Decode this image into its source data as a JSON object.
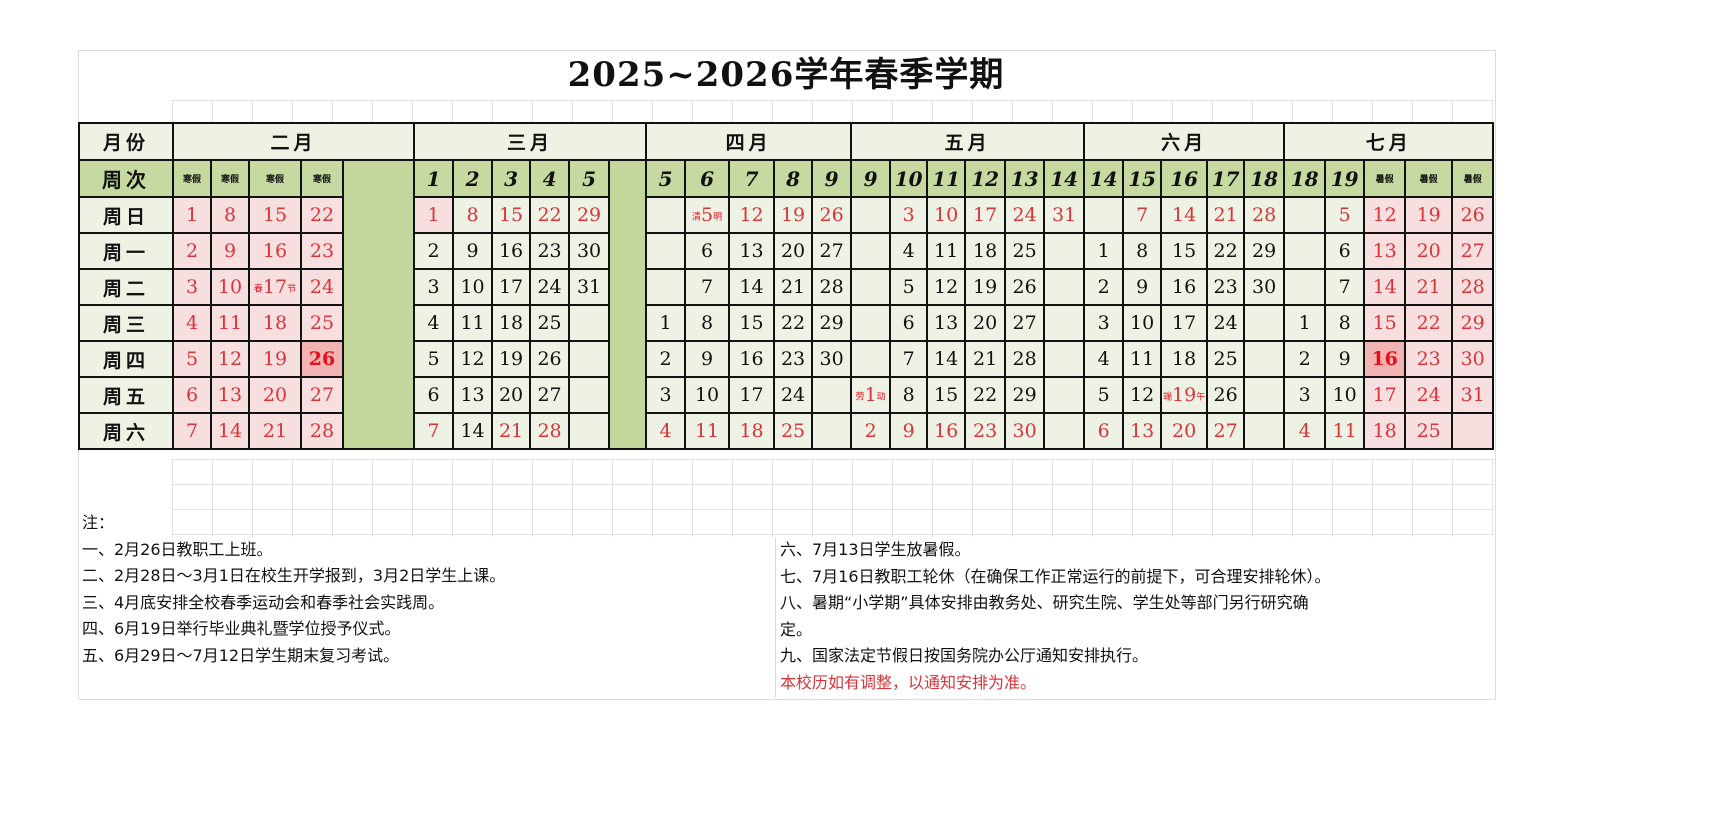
{
  "title": "2025~2026学年春季学期",
  "header": {
    "month_label": "月份",
    "week_label": "周次",
    "weekdays": [
      "周日",
      "周一",
      "周二",
      "周三",
      "周四",
      "周五",
      "周六"
    ]
  },
  "months": [
    {
      "name": "二月",
      "weeks": [
        {
          "label": "寒假",
          "small": true,
          "days": [
            [
              "1",
              "rp"
            ],
            [
              "2",
              "rp"
            ],
            [
              "3",
              "rp"
            ],
            [
              "4",
              "rp"
            ],
            [
              "5",
              "rp"
            ],
            [
              "6",
              "rp"
            ],
            [
              "7",
              "rp"
            ]
          ]
        },
        {
          "label": "寒假",
          "small": true,
          "days": [
            [
              "8",
              "rp"
            ],
            [
              "9",
              "rp"
            ],
            [
              "10",
              "rp"
            ],
            [
              "11",
              "rp"
            ],
            [
              "12",
              "rp"
            ],
            [
              "13",
              "rp"
            ],
            [
              "14",
              "rp"
            ]
          ]
        },
        {
          "label": "寒假",
          "small": true,
          "days": [
            [
              "15",
              "rp"
            ],
            [
              "16",
              "rp"
            ],
            [
              "17",
              "rp",
              "春",
              "节"
            ],
            [
              "18",
              "rp"
            ],
            [
              "19",
              "rp"
            ],
            [
              "20",
              "rp"
            ],
            [
              "21",
              "rp"
            ]
          ]
        },
        {
          "label": "寒假",
          "small": true,
          "days": [
            [
              "22",
              "rp"
            ],
            [
              "23",
              "rp"
            ],
            [
              "24",
              "rp"
            ],
            [
              "25",
              "rp"
            ],
            [
              "26",
              "rP"
            ],
            [
              "27",
              "rp"
            ],
            [
              "28",
              "rp"
            ]
          ]
        }
      ]
    },
    {
      "name": "三月",
      "weeks": [
        {
          "label": "1",
          "days": [
            [
              "1",
              "rp"
            ],
            [
              "2",
              ""
            ],
            [
              "3",
              ""
            ],
            [
              "4",
              ""
            ],
            [
              "5",
              ""
            ],
            [
              "6",
              ""
            ],
            [
              "7",
              "r"
            ]
          ]
        },
        {
          "label": "2",
          "days": [
            [
              "8",
              "r"
            ],
            [
              "9",
              ""
            ],
            [
              "10",
              ""
            ],
            [
              "11",
              ""
            ],
            [
              "12",
              ""
            ],
            [
              "13",
              ""
            ],
            [
              "14",
              ""
            ]
          ]
        },
        {
          "label": "3",
          "days": [
            [
              "15",
              "r"
            ],
            [
              "16",
              ""
            ],
            [
              "17",
              ""
            ],
            [
              "18",
              ""
            ],
            [
              "19",
              ""
            ],
            [
              "20",
              ""
            ],
            [
              "21",
              "r"
            ]
          ]
        },
        {
          "label": "4",
          "days": [
            [
              "22",
              "r"
            ],
            [
              "23",
              ""
            ],
            [
              "24",
              ""
            ],
            [
              "25",
              ""
            ],
            [
              "26",
              ""
            ],
            [
              "27",
              ""
            ],
            [
              "28",
              "r"
            ]
          ]
        },
        {
          "label": "5",
          "days": [
            [
              "29",
              "r"
            ],
            [
              "30",
              ""
            ],
            [
              "31",
              ""
            ],
            [
              "",
              ""
            ],
            [
              "",
              ""
            ],
            [
              "",
              ""
            ],
            [
              "",
              ""
            ]
          ]
        }
      ]
    },
    {
      "name": "四月",
      "weeks": [
        {
          "label": "5",
          "days": [
            [
              "",
              ""
            ],
            [
              "",
              ""
            ],
            [
              "",
              ""
            ],
            [
              "1",
              ""
            ],
            [
              "2",
              ""
            ],
            [
              "3",
              ""
            ],
            [
              "4",
              "r"
            ]
          ]
        },
        {
          "label": "6",
          "days": [
            [
              "5",
              "r",
              "清",
              "明"
            ],
            [
              "6",
              ""
            ],
            [
              "7",
              ""
            ],
            [
              "8",
              ""
            ],
            [
              "9",
              ""
            ],
            [
              "10",
              ""
            ],
            [
              "11",
              "r"
            ]
          ]
        },
        {
          "label": "7",
          "days": [
            [
              "12",
              "r"
            ],
            [
              "13",
              ""
            ],
            [
              "14",
              ""
            ],
            [
              "15",
              ""
            ],
            [
              "16",
              ""
            ],
            [
              "17",
              ""
            ],
            [
              "18",
              "r"
            ]
          ]
        },
        {
          "label": "8",
          "days": [
            [
              "19",
              "r"
            ],
            [
              "20",
              ""
            ],
            [
              "21",
              ""
            ],
            [
              "22",
              ""
            ],
            [
              "23",
              ""
            ],
            [
              "24",
              ""
            ],
            [
              "25",
              "r"
            ]
          ]
        },
        {
          "label": "9",
          "days": [
            [
              "26",
              "r"
            ],
            [
              "27",
              ""
            ],
            [
              "28",
              ""
            ],
            [
              "29",
              ""
            ],
            [
              "30",
              ""
            ],
            [
              "",
              ""
            ],
            [
              "",
              ""
            ]
          ]
        }
      ]
    },
    {
      "name": "五月",
      "weeks": [
        {
          "label": "9",
          "days": [
            [
              "",
              ""
            ],
            [
              "",
              ""
            ],
            [
              "",
              ""
            ],
            [
              "",
              ""
            ],
            [
              "",
              ""
            ],
            [
              "1",
              "r",
              "劳",
              "动"
            ],
            [
              "2",
              "r"
            ]
          ]
        },
        {
          "label": "10",
          "days": [
            [
              "3",
              "r"
            ],
            [
              "4",
              ""
            ],
            [
              "5",
              ""
            ],
            [
              "6",
              ""
            ],
            [
              "7",
              ""
            ],
            [
              "8",
              ""
            ],
            [
              "9",
              "r"
            ]
          ]
        },
        {
          "label": "11",
          "days": [
            [
              "10",
              "r"
            ],
            [
              "11",
              ""
            ],
            [
              "12",
              ""
            ],
            [
              "13",
              ""
            ],
            [
              "14",
              ""
            ],
            [
              "15",
              ""
            ],
            [
              "16",
              "r"
            ]
          ]
        },
        {
          "label": "12",
          "days": [
            [
              "17",
              "r"
            ],
            [
              "18",
              ""
            ],
            [
              "19",
              ""
            ],
            [
              "20",
              ""
            ],
            [
              "21",
              ""
            ],
            [
              "22",
              ""
            ],
            [
              "23",
              "r"
            ]
          ]
        },
        {
          "label": "13",
          "days": [
            [
              "24",
              "r"
            ],
            [
              "25",
              ""
            ],
            [
              "26",
              ""
            ],
            [
              "27",
              ""
            ],
            [
              "28",
              ""
            ],
            [
              "29",
              ""
            ],
            [
              "30",
              "r"
            ]
          ]
        },
        {
          "label": "14",
          "days": [
            [
              "31",
              "r"
            ],
            [
              "",
              ""
            ],
            [
              "",
              ""
            ],
            [
              "",
              ""
            ],
            [
              "",
              ""
            ],
            [
              "",
              ""
            ],
            [
              "",
              ""
            ]
          ]
        }
      ]
    },
    {
      "name": "六月",
      "weeks": [
        {
          "label": "14",
          "days": [
            [
              "",
              ""
            ],
            [
              "1",
              ""
            ],
            [
              "2",
              ""
            ],
            [
              "3",
              ""
            ],
            [
              "4",
              ""
            ],
            [
              "5",
              ""
            ],
            [
              "6",
              "r"
            ]
          ]
        },
        {
          "label": "15",
          "days": [
            [
              "7",
              "r"
            ],
            [
              "8",
              ""
            ],
            [
              "9",
              ""
            ],
            [
              "10",
              ""
            ],
            [
              "11",
              ""
            ],
            [
              "12",
              ""
            ],
            [
              "13",
              "r"
            ]
          ]
        },
        {
          "label": "16",
          "days": [
            [
              "14",
              "r"
            ],
            [
              "15",
              ""
            ],
            [
              "16",
              ""
            ],
            [
              "17",
              ""
            ],
            [
              "18",
              ""
            ],
            [
              "19",
              "r",
              "端",
              "午"
            ],
            [
              "20",
              "r"
            ]
          ]
        },
        {
          "label": "17",
          "days": [
            [
              "21",
              "r"
            ],
            [
              "22",
              ""
            ],
            [
              "23",
              ""
            ],
            [
              "24",
              ""
            ],
            [
              "25",
              ""
            ],
            [
              "26",
              ""
            ],
            [
              "27",
              "r"
            ]
          ]
        },
        {
          "label": "18",
          "days": [
            [
              "28",
              "r"
            ],
            [
              "29",
              ""
            ],
            [
              "30",
              ""
            ],
            [
              "",
              ""
            ],
            [
              "",
              ""
            ],
            [
              "",
              ""
            ],
            [
              "",
              ""
            ]
          ]
        }
      ]
    },
    {
      "name": "七月",
      "weeks": [
        {
          "label": "18",
          "days": [
            [
              "",
              ""
            ],
            [
              "",
              ""
            ],
            [
              "",
              ""
            ],
            [
              "1",
              ""
            ],
            [
              "2",
              ""
            ],
            [
              "3",
              ""
            ],
            [
              "4",
              "r"
            ]
          ]
        },
        {
          "label": "19",
          "days": [
            [
              "5",
              "r"
            ],
            [
              "6",
              ""
            ],
            [
              "7",
              ""
            ],
            [
              "8",
              ""
            ],
            [
              "9",
              ""
            ],
            [
              "10",
              ""
            ],
            [
              "11",
              "r"
            ]
          ]
        },
        {
          "label": "暑假",
          "small": true,
          "days": [
            [
              "12",
              "rp"
            ],
            [
              "13",
              "rp"
            ],
            [
              "14",
              "rp"
            ],
            [
              "15",
              "rp"
            ],
            [
              "16",
              "rP"
            ],
            [
              "17",
              "rp"
            ],
            [
              "18",
              "rp"
            ]
          ]
        },
        {
          "label": "暑假",
          "small": true,
          "days": [
            [
              "19",
              "rp"
            ],
            [
              "20",
              "rp"
            ],
            [
              "21",
              "rp"
            ],
            [
              "22",
              "rp"
            ],
            [
              "23",
              "rp"
            ],
            [
              "24",
              "rp"
            ],
            [
              "25",
              "rp"
            ]
          ]
        },
        {
          "label": "暑假",
          "small": true,
          "days": [
            [
              "26",
              "rp"
            ],
            [
              "27",
              "rp"
            ],
            [
              "28",
              "rp"
            ],
            [
              "29",
              "rp"
            ],
            [
              "30",
              "rp"
            ],
            [
              "31",
              "rp"
            ],
            [
              "",
              "rp"
            ]
          ]
        }
      ]
    }
  ],
  "notes": {
    "heading": "注：",
    "left": [
      "一、2月26日教职工上班。",
      "二、2月28日～3月1日在校生开学报到，3月2日学生上课。",
      "三、4月底安排全校春季运动会和春季社会实践周。",
      "四、6月19日举行毕业典礼暨学位授予仪式。",
      "五、6月29日～7月12日学生期末复习考试。"
    ],
    "right": [
      "六、7月13日学生放暑假。",
      "七、7月16日教职工轮休（在确保工作正常运行的前提下，可合理安排轮休）。",
      "八、暑期“小学期”具体安排由教务处、研究生院、学生处等部门另行研究确",
      "定。",
      "九、国家法定节假日按国务院办公厅通知安排执行。"
    ],
    "footer": "本校历如有调整，以通知安排为准。"
  },
  "colors": {
    "cell_bg": "#eef2e4",
    "week_row_bg": "#c5d9a0",
    "spacer_bg": "#c3d69b",
    "holiday_bg": "#f8dfdf",
    "highlight_bg": "#f2b3b3",
    "red_text": "#d8343a"
  }
}
